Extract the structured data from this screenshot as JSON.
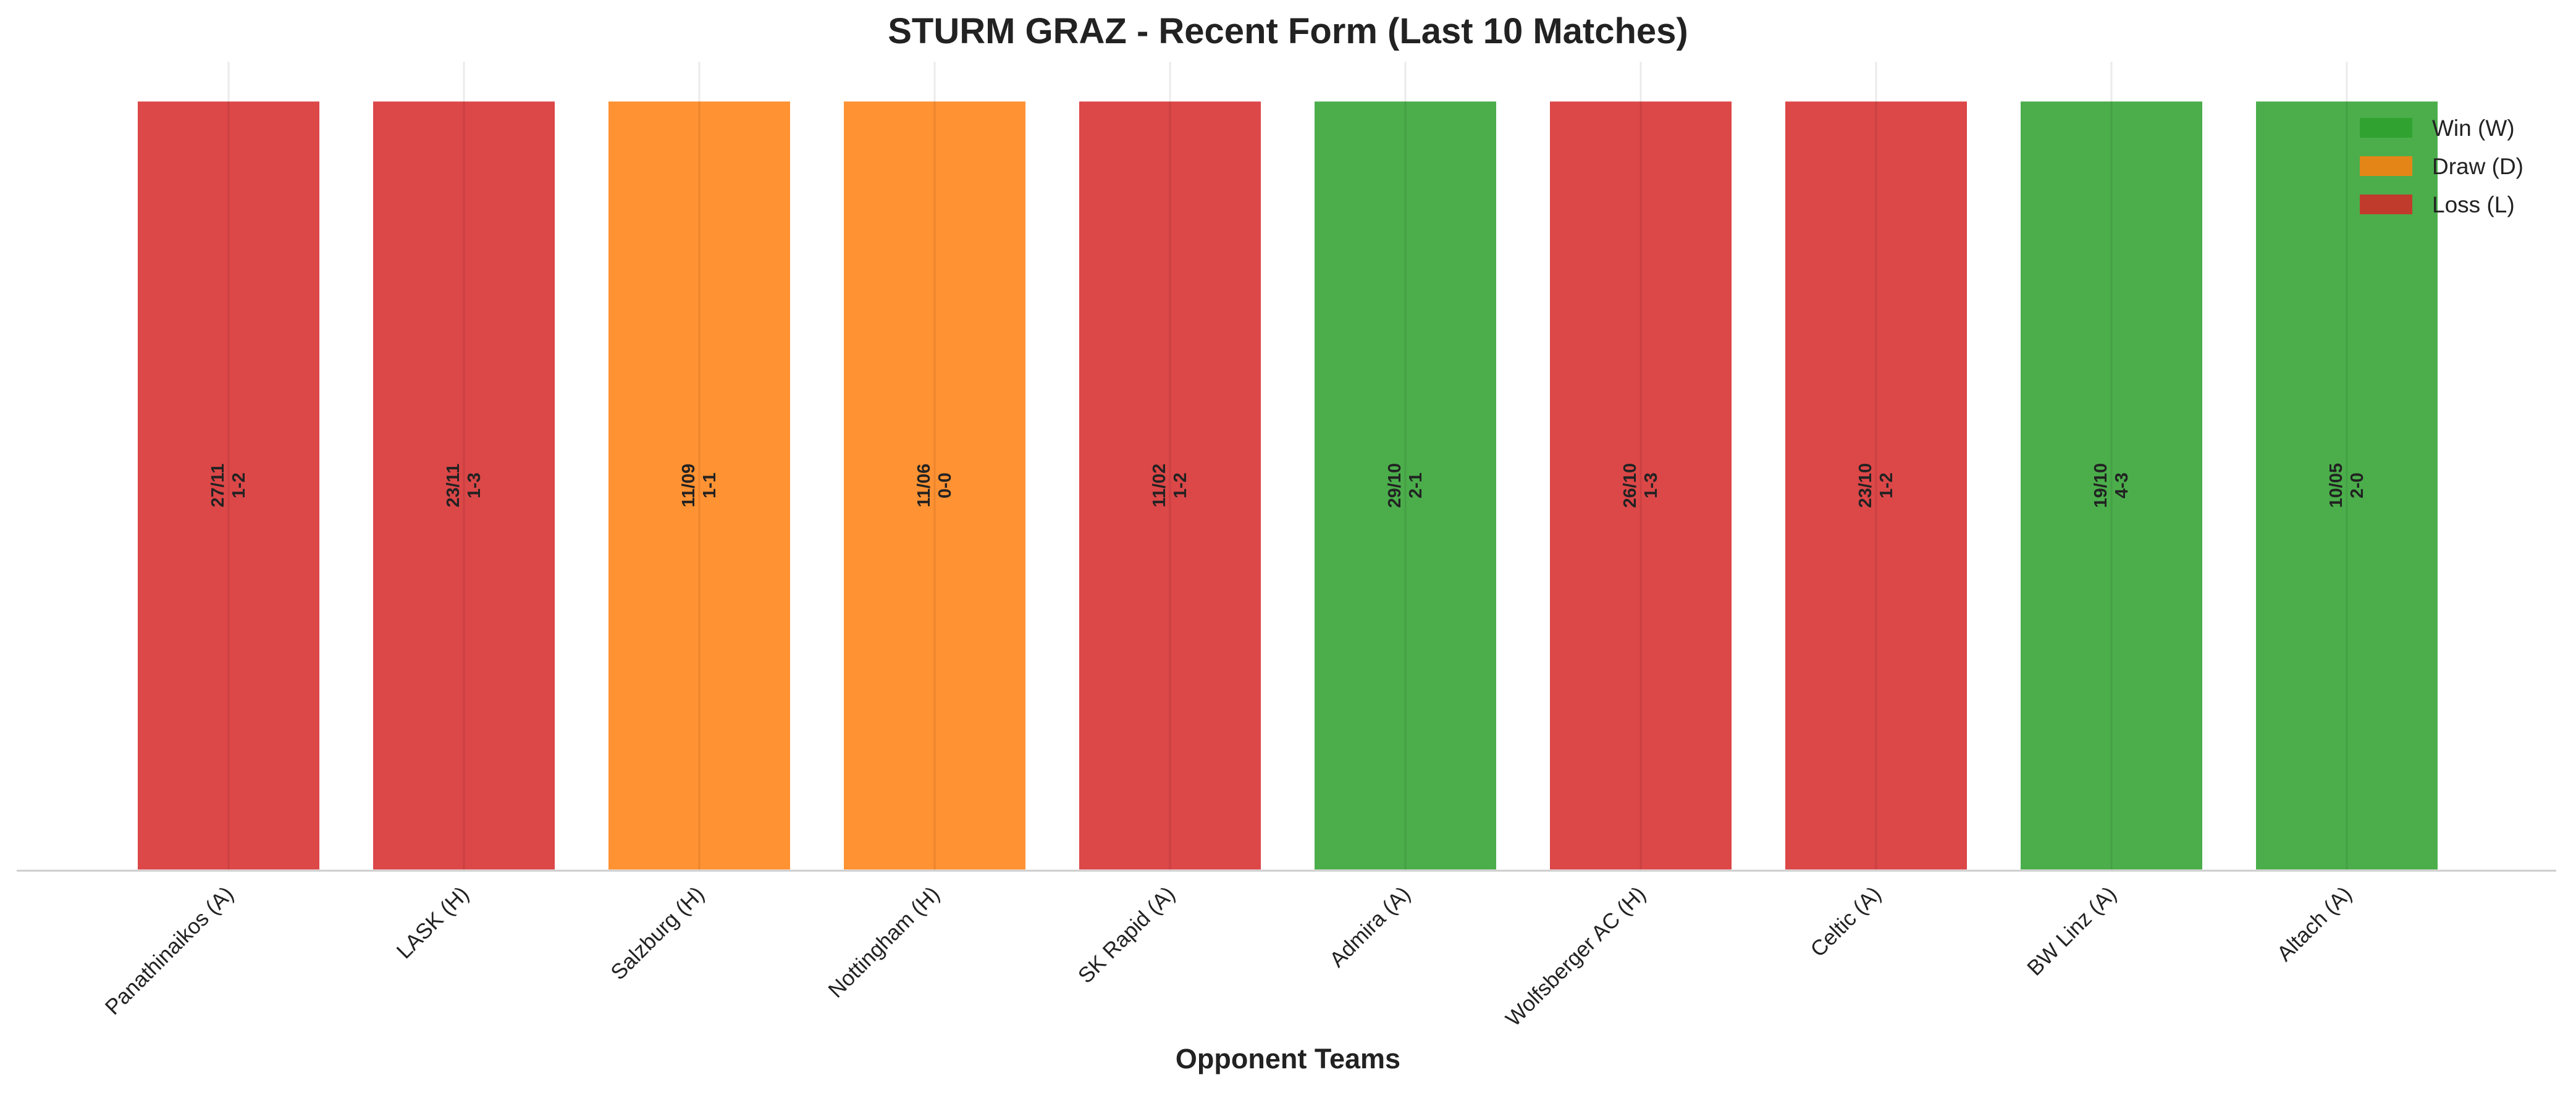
{
  "chart_data": {
    "type": "bar",
    "title": "STURM GRAZ - Recent Form (Last 10 Matches)",
    "x_label": "Opponent Teams",
    "categories": [
      "Panathinaikos (A)",
      "LASK (H)",
      "Salzburg (H)",
      "Nottingham (H)",
      "SK Rapid (A)",
      "Admira (A)",
      "Wolfsberger AC (H)",
      "Celtic (A)",
      "BW Linz (A)",
      "Altach (A)"
    ],
    "values": [
      1,
      1,
      1,
      1,
      1,
      1,
      1,
      1,
      1,
      1
    ],
    "colors": [
      "#d62728",
      "#d62728",
      "#ff7f0e",
      "#ff7f0e",
      "#d62728",
      "#2ca02c",
      "#d62728",
      "#d62728",
      "#2ca02c",
      "#2ca02c"
    ],
    "bar_labels": [
      {
        "date": "27/11",
        "score": "1-2"
      },
      {
        "date": "23/11",
        "score": "1-3"
      },
      {
        "date": "11/09",
        "score": "1-1"
      },
      {
        "date": "11/06",
        "score": "0-0"
      },
      {
        "date": "11/02",
        "score": "1-2"
      },
      {
        "date": "29/10",
        "score": "2-1"
      },
      {
        "date": "26/10",
        "score": "1-3"
      },
      {
        "date": "23/10",
        "score": "1-2"
      },
      {
        "date": "19/10",
        "score": "4-3"
      },
      {
        "date": "10/05",
        "score": "2-0"
      }
    ],
    "ylim": [
      0,
      1.05
    ],
    "grid": true,
    "legend_position": "upper right",
    "legend": [
      {
        "label": "Win (W)",
        "color": "#2ca02c"
      },
      {
        "label": "Draw (D)",
        "color": "#ff7f0e"
      },
      {
        "label": "Loss (L)",
        "color": "#d62728"
      }
    ]
  }
}
